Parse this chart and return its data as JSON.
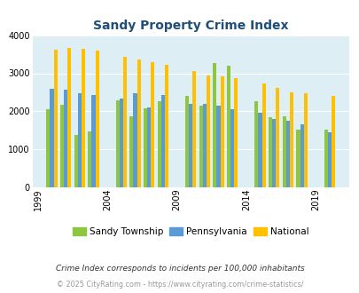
{
  "title": "Sandy Property Crime Index",
  "years": [
    2000,
    2001,
    2002,
    2003,
    2005,
    2006,
    2007,
    2008,
    2010,
    2011,
    2012,
    2013,
    2015,
    2016,
    2017,
    2018,
    2020
  ],
  "sandy": [
    2060,
    2180,
    1370,
    1470,
    2290,
    1870,
    2080,
    2270,
    2400,
    2150,
    3270,
    3200,
    2260,
    1840,
    1870,
    1520,
    1530
  ],
  "pennsylvania": [
    2600,
    2560,
    2470,
    2440,
    2330,
    2470,
    2100,
    2420,
    2200,
    2190,
    2160,
    2060,
    1960,
    1800,
    1760,
    1650,
    1460
  ],
  "national": [
    3620,
    3660,
    3640,
    3600,
    3440,
    3360,
    3300,
    3230,
    3050,
    2950,
    2920,
    2880,
    2740,
    2620,
    2510,
    2470,
    2410
  ],
  "xtick_positions": [
    1999,
    2004,
    2009,
    2014,
    2019
  ],
  "xtick_labels": [
    "1999",
    "2004",
    "2009",
    "2014",
    "2019"
  ],
  "ylim": [
    0,
    4000
  ],
  "yticks": [
    0,
    1000,
    2000,
    3000,
    4000
  ],
  "bar_width": 0.26,
  "color_sandy": "#8dc641",
  "color_pennsylvania": "#5b9bd5",
  "color_national": "#ffc000",
  "bg_color": "#ddeef5",
  "grid_color": "#ffffff",
  "title_color": "#1f4e79",
  "title_fontsize": 10,
  "legend_labels": [
    "Sandy Township",
    "Pennsylvania",
    "National"
  ],
  "footnote1": "Crime Index corresponds to incidents per 100,000 inhabitants",
  "footnote2": "© 2025 CityRating.com - https://www.cityrating.com/crime-statistics/",
  "footnote1_color": "#333333",
  "footnote2_color": "#999999",
  "xlim_left": 1998.6,
  "xlim_right": 2021.4
}
